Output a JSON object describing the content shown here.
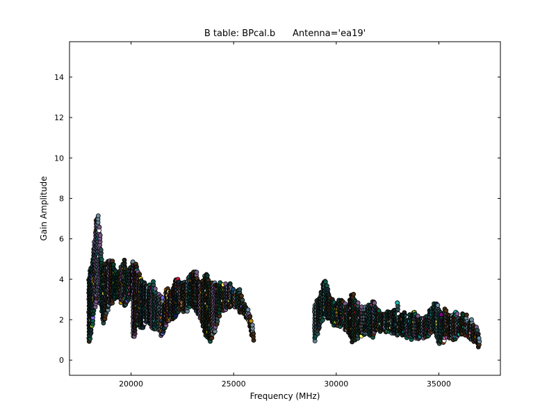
{
  "chart_data": {
    "type": "scatter",
    "title": "B table: BPcal.b      Antenna='ea19'",
    "xlabel": "Frequency (MHz)",
    "ylabel": "Gain Amplitude",
    "xlim": [
      17000,
      38000
    ],
    "ylim": [
      -0.75,
      15.75
    ],
    "x_ticks": [
      20000,
      25000,
      30000,
      35000
    ],
    "y_ticks": [
      0,
      2,
      4,
      6,
      8,
      10,
      12,
      14
    ],
    "grid": false,
    "legend": "none",
    "marker": "circle",
    "marker_edge_color": "#000000",
    "groups": [
      {
        "x_range": [
          17950,
          18650
        ],
        "upper": [
          4.3,
          4.8,
          6.0,
          7.5,
          5.8,
          4.5
        ],
        "lower": [
          0.8,
          1.6,
          2.6,
          3.3,
          2.8,
          2.0
        ]
      },
      {
        "x_range": [
          18650,
          20100
        ],
        "upper": [
          4.6,
          4.8,
          5.0,
          4.2,
          4.6,
          4.9,
          4.4,
          4.8
        ],
        "lower": [
          1.8,
          2.6,
          2.9,
          3.2,
          3.0,
          2.8,
          3.1,
          3.3
        ]
      },
      {
        "x_range": [
          20100,
          21700
        ],
        "upper": [
          4.9,
          4.5,
          3.8,
          3.6,
          3.9,
          3.4,
          3.0,
          2.8
        ],
        "lower": [
          1.1,
          1.9,
          1.6,
          2.1,
          1.5,
          1.7,
          1.3,
          1.8
        ]
      },
      {
        "x_range": [
          21700,
          23900
        ],
        "upper": [
          3.6,
          3.3,
          4.1,
          3.8,
          3.9,
          4.2,
          4.4,
          3.7,
          4.3,
          3.9
        ],
        "lower": [
          1.7,
          2.1,
          2.3,
          2.6,
          2.5,
          2.8,
          2.6,
          2.1,
          1.3,
          1.0
        ]
      },
      {
        "x_range": [
          23900,
          26000
        ],
        "upper": [
          4.0,
          3.7,
          3.9,
          3.6,
          3.8,
          3.3,
          3.5,
          2.8,
          2.2,
          1.5
        ],
        "lower": [
          1.1,
          1.7,
          2.5,
          2.6,
          2.8,
          2.6,
          2.5,
          2.3,
          1.8,
          0.9
        ]
      },
      {
        "x_range": [
          28950,
          30200
        ],
        "upper": [
          2.9,
          3.2,
          4.0,
          3.1,
          2.8,
          3.0
        ],
        "lower": [
          1.0,
          1.8,
          2.2,
          2.0,
          1.8,
          1.9
        ]
      },
      {
        "x_range": [
          30200,
          33000
        ],
        "upper": [
          3.0,
          2.6,
          3.3,
          2.5,
          2.6,
          2.9,
          2.4,
          2.3,
          2.5,
          2.7
        ],
        "lower": [
          1.8,
          1.6,
          0.9,
          1.3,
          1.4,
          1.2,
          1.6,
          1.4,
          1.5,
          1.3
        ]
      },
      {
        "x_range": [
          33000,
          35300
        ],
        "upper": [
          2.2,
          2.4,
          2.1,
          2.3,
          2.0,
          2.2,
          2.8,
          2.6,
          2.1
        ],
        "lower": [
          1.4,
          1.3,
          1.2,
          1.1,
          1.2,
          1.3,
          1.5,
          0.8,
          1.1
        ]
      },
      {
        "x_range": [
          35300,
          37000
        ],
        "upper": [
          2.4,
          2.2,
          2.3,
          2.1,
          2.2,
          2.0,
          1.8,
          1.2
        ],
        "lower": [
          1.3,
          1.2,
          1.1,
          1.3,
          1.4,
          1.2,
          1.0,
          0.6
        ]
      }
    ],
    "palette": [
      "#2f4f4f",
      "#1a2a3a",
      "#3c2a18",
      "#0b3d2e",
      "#4b2e14",
      "#0e5a4a",
      "#7a5a8a",
      "#6b8e9e",
      "#202020",
      "#3a3a10",
      "#1e3f66",
      "#552244",
      "#b8860b",
      "#cd853f",
      "#ff69b4",
      "#7b68ee",
      "#20b2aa",
      "#ffd700",
      "#dc143c",
      "#00ced1",
      "#9acd32",
      "#ffa07a",
      "#e6e6fa",
      "#ffffff",
      "#008b8b",
      "#8b4513",
      "#191970",
      "#2e8b57",
      "#800080",
      "#ffff66"
    ]
  }
}
